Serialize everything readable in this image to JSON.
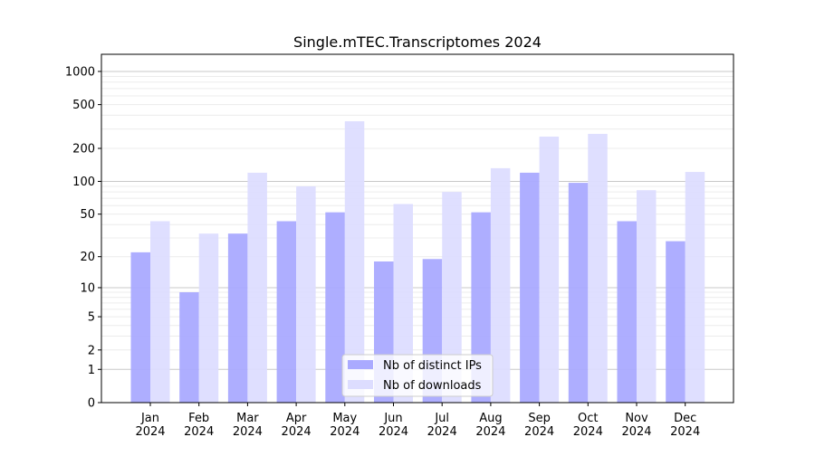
{
  "chart_data": {
    "type": "bar",
    "title": "Single.mTEC.Transcriptomes 2024",
    "xlabel": "",
    "ylabel": "",
    "yscale": "symlog",
    "ylim": [
      0,
      1300
    ],
    "yticks": [
      0,
      1,
      2,
      5,
      10,
      20,
      50,
      100,
      200,
      500,
      1000
    ],
    "grid": true,
    "legend_position": "lower-center",
    "categories": [
      "Jan\n2024",
      "Feb\n2024",
      "Mar\n2024",
      "Apr\n2024",
      "May\n2024",
      "Jun\n2024",
      "Jul\n2024",
      "Aug\n2024",
      "Sep\n2024",
      "Oct\n2024",
      "Nov\n2024",
      "Dec\n2024"
    ],
    "series": [
      {
        "name": "Nb of distinct IPs",
        "color": "#aaaaff",
        "values": [
          22,
          9,
          33,
          43,
          52,
          18,
          19,
          52,
          120,
          97,
          43,
          28
        ]
      },
      {
        "name": "Nb of downloads",
        "color": "#ddddff",
        "values": [
          43,
          33,
          120,
          90,
          353,
          62,
          80,
          132,
          256,
          271,
          83,
          122
        ]
      }
    ]
  }
}
